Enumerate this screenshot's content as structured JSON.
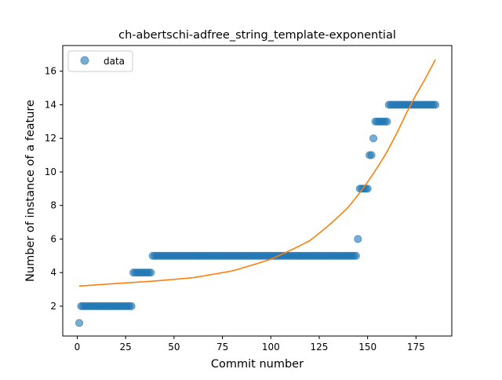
{
  "chart_data": {
    "type": "scatter",
    "title": "ch-abertschi-adfree_string_template-exponential",
    "xlabel": "Commit number",
    "ylabel": "Number of instance of a feature",
    "xlim": [
      -7.5,
      193.5
    ],
    "ylim": [
      0.22,
      17.53
    ],
    "xticks": [
      0,
      25,
      50,
      75,
      100,
      125,
      150,
      175
    ],
    "yticks": [
      2,
      4,
      6,
      8,
      10,
      12,
      14,
      16
    ],
    "grid": false,
    "legend": {
      "position": "upper-left",
      "entries": [
        "data"
      ]
    },
    "series": [
      {
        "name": "data",
        "kind": "points",
        "color": "#1f77b4",
        "segments": [
          {
            "x_from": 1,
            "x_to": 1,
            "y": 1
          },
          {
            "x_from": 2,
            "x_to": 28,
            "y": 2
          },
          {
            "x_from": 29,
            "x_to": 38,
            "y": 4
          },
          {
            "x_from": 39,
            "x_to": 144,
            "y": 5
          },
          {
            "x_from": 145,
            "x_to": 145,
            "y": 6
          },
          {
            "x_from": 146,
            "x_to": 150,
            "y": 9
          },
          {
            "x_from": 151,
            "x_to": 152,
            "y": 11
          },
          {
            "x_from": 153,
            "x_to": 153,
            "y": 12
          },
          {
            "x_from": 154,
            "x_to": 160,
            "y": 13
          },
          {
            "x_from": 161,
            "x_to": 185,
            "y": 14
          }
        ]
      },
      {
        "kind": "fit",
        "color": "#ff7f0e",
        "x": [
          1,
          20,
          40,
          60,
          80,
          100,
          120,
          140,
          150,
          160,
          170,
          175,
          180,
          185
        ],
        "y": [
          3.2,
          3.35,
          3.5,
          3.7,
          4.1,
          4.8,
          5.9,
          7.9,
          9.4,
          11.2,
          13.5,
          14.6,
          15.6,
          16.7
        ]
      }
    ]
  }
}
